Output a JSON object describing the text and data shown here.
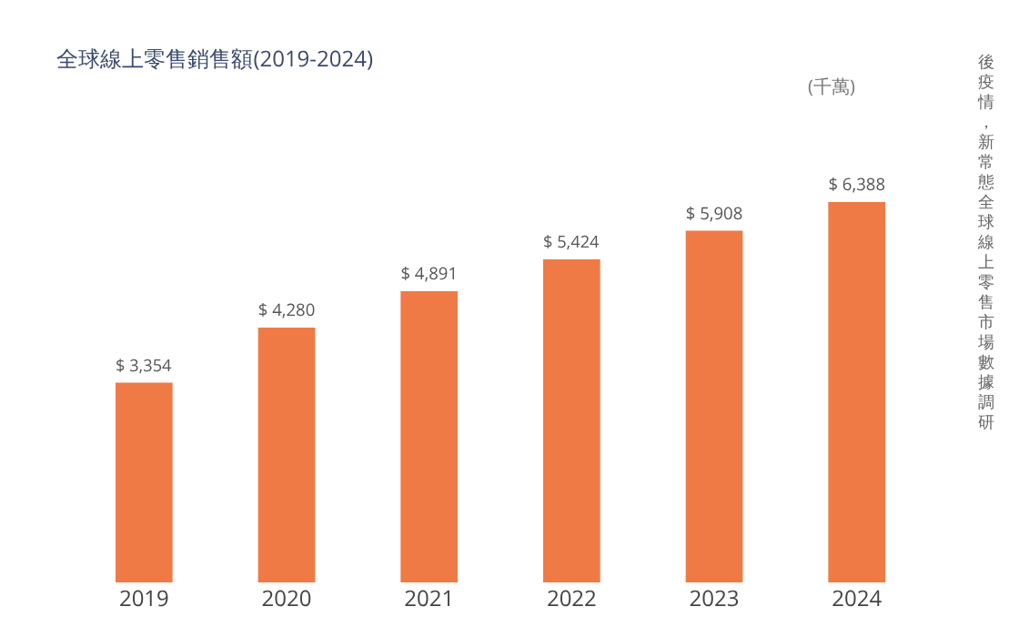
{
  "chart_data": {
    "type": "bar",
    "title": "全球線上零售銷售額(2019-2024)",
    "categories": [
      "2019",
      "2020",
      "2021",
      "2022",
      "2023",
      "2024"
    ],
    "values": [
      3354,
      4280,
      4891,
      5424,
      5908,
      6388
    ],
    "color": "#ef7a45",
    "value_labels": [
      "$ 3,354",
      "$ 4,280",
      "$ 4,891",
      "$ 5,424",
      "$ 5,908",
      "$ 6,388"
    ],
    "annotations": [
      "(千萬)",
      "後疫情，新常態全球線上零售市場數據調研"
    ],
    "grid": false,
    "legend": false
  }
}
